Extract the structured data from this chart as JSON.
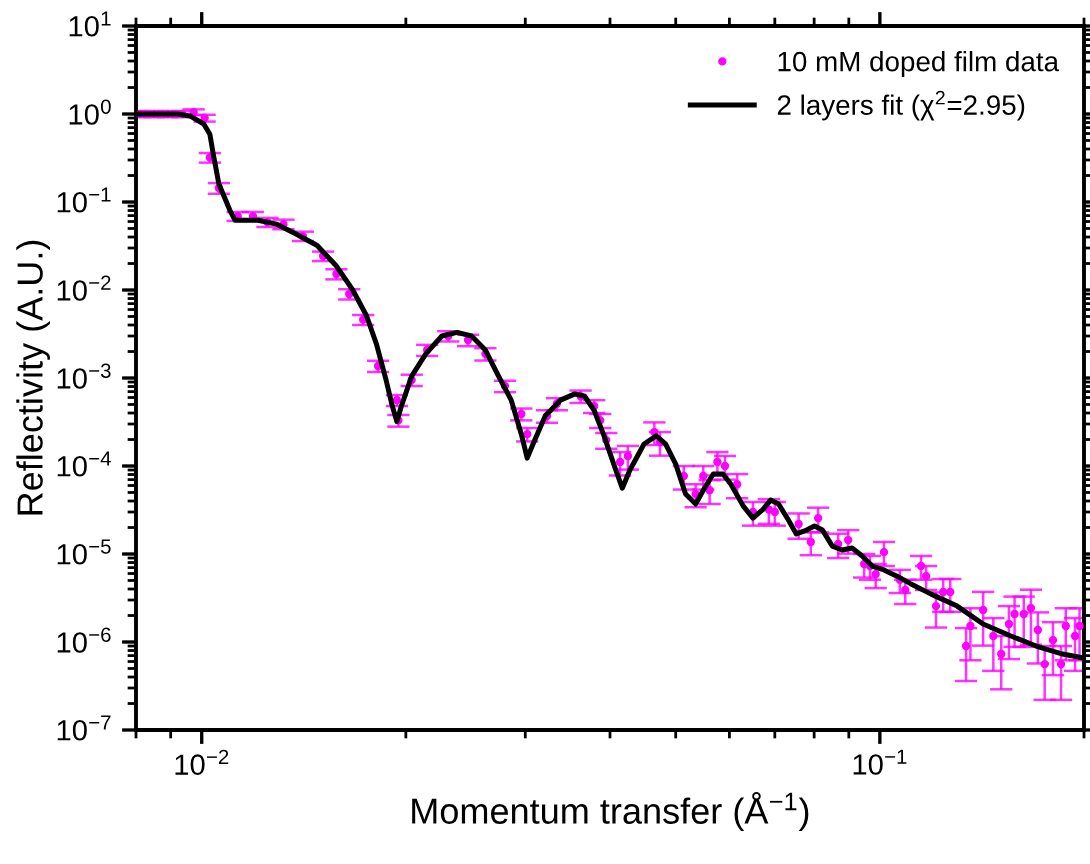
{
  "chart_data": {
    "type": "scatter",
    "log": "xy",
    "xlabel": "Momentum transfer (Å$^{−1}$)",
    "ylabel": "Reflectivity (A.U.)",
    "legend": "top right",
    "xlim": [
      0.008,
      0.2
    ],
    "ylim": [
      1e-07,
      10
    ],
    "xticks": [
      {
        "value": 0.01,
        "label": "10$^{−2}$"
      },
      {
        "value": 0.1,
        "label": "10$^{−1}$"
      }
    ],
    "yticks": [
      {
        "value": 1e-07,
        "label": "10$^{−7}$"
      },
      {
        "value": 1e-06,
        "label": "10$^{−6}$"
      },
      {
        "value": 1e-05,
        "label": "10$^{−5}$"
      },
      {
        "value": 0.0001,
        "label": "10$^{−4}$"
      },
      {
        "value": 0.001,
        "label": "10$^{−3}$"
      },
      {
        "value": 0.01,
        "label": "10$^{−2}$"
      },
      {
        "value": 0.1,
        "label": "10$^{−1}$"
      },
      {
        "value": 1,
        "label": "10$^{0}$"
      },
      {
        "value": 10,
        "label": "10$^{1}$"
      }
    ],
    "series": [
      {
        "name": "10 mM doped film data",
        "color": "#ff00ff",
        "marker": "circle",
        "x": [
          0.00812,
          0.00851,
          0.00891,
          0.00935,
          0.00973,
          0.0101,
          0.01028,
          0.0106,
          0.0113,
          0.0119,
          0.0125,
          0.0132,
          0.0141,
          0.0151,
          0.0158,
          0.0165,
          0.0173,
          0.0182,
          0.0194,
          0.0195,
          0.0204,
          0.0215,
          0.0231,
          0.0247,
          0.0262,
          0.028,
          0.0296,
          0.0302,
          0.0323,
          0.0334,
          0.0362,
          0.0379,
          0.0387,
          0.0395,
          0.0414,
          0.0425,
          0.0465,
          0.0474,
          0.0514,
          0.0535,
          0.0549,
          0.0561,
          0.0576,
          0.0591,
          0.0616,
          0.065,
          0.0686,
          0.07,
          0.0759,
          0.0791,
          0.0811,
          0.0868,
          0.0898,
          0.0948,
          0.0967,
          0.0986,
          0.1014,
          0.107,
          0.109,
          0.115,
          0.117,
          0.121,
          0.124,
          0.127,
          0.134,
          0.136,
          0.142,
          0.147,
          0.151,
          0.155,
          0.158,
          0.163,
          0.167,
          0.171,
          0.175,
          0.18,
          0.185,
          0.188,
          0.194,
          0.197
        ],
        "values": [
          1.0,
          1.0,
          1.0,
          1.0,
          1.05,
          0.9,
          0.32,
          0.144,
          0.069,
          0.069,
          0.059,
          0.056,
          0.041,
          0.0243,
          0.0152,
          0.009,
          0.0046,
          0.00137,
          0.00056,
          0.00033,
          0.00095,
          0.00208,
          0.003,
          0.0027,
          0.00188,
          0.00081,
          0.00039,
          0.00023,
          0.00037,
          0.00051,
          0.00062,
          0.00048,
          0.00033,
          0.000197,
          0.000111,
          0.00013,
          0.000243,
          0.000187,
          7.7e-05,
          4.8e-05,
          7.7e-05,
          5.3e-05,
          0.000111,
          0.0001,
          6.2e-05,
          3e-05,
          3.2e-05,
          3e-05,
          2.19e-05,
          1.37e-05,
          2.56e-05,
          1.3e-05,
          1.44e-05,
          7.7e-06,
          7.3e-06,
          5.9e-06,
          1.05e-05,
          5.1e-06,
          3.9e-06,
          7.3e-06,
          5.6e-06,
          2.56e-06,
          3.7e-06,
          3.7e-06,
          9e-07,
          1.52e-06,
          2.31e-06,
          1.17e-06,
          7.3e-07,
          1.6e-06,
          2.08e-06,
          2.08e-06,
          2.43e-06,
          1.37e-06,
          5.6e-07,
          1.05e-06,
          5.6e-07,
          1.52e-06,
          1.17e-06,
          1.52e-06
        ],
        "errors": [
          0.08,
          0.08,
          0.08,
          0.08,
          0.08,
          0.08,
          0.04,
          0.02,
          0.008,
          0.008,
          0.007,
          0.007,
          0.005,
          0.003,
          0.002,
          0.0012,
          0.0006,
          0.0002,
          8e-05,
          5e-05,
          0.00014,
          0.0003,
          0.0004,
          0.0004,
          0.0003,
          0.00012,
          6e-05,
          4e-05,
          6e-05,
          8e-05,
          0.0001,
          8e-05,
          6e-05,
          4e-05,
          3.3e-05,
          3.9e-05,
          7e-05,
          5.6e-05,
          2.3e-05,
          1.4e-05,
          2.3e-05,
          1.6e-05,
          3.3e-05,
          3e-05,
          1.9e-05,
          9e-06,
          1e-05,
          9e-06,
          7e-06,
          4e-06,
          8e-06,
          4e-06,
          4.3e-06,
          2.3e-06,
          2.2e-06,
          1.8e-06,
          3.2e-06,
          1.5e-06,
          1.2e-06,
          2.2e-06,
          1.7e-06,
          1.1e-06,
          1.5e-06,
          1.5e-06,
          5.4e-07,
          9e-07,
          1.4e-06,
          7e-07,
          4.4e-07,
          9.6e-07,
          1.2e-06,
          1.2e-06,
          1.5e-06,
          8e-07,
          3.4e-07,
          6.3e-07,
          3.4e-07,
          9e-07,
          7e-07,
          9e-07
        ]
      },
      {
        "name": "2 layers fit (χ$^{2}$=2.95)",
        "type": "line",
        "color": "#000000",
        "line_style": "solid",
        "marker": "none",
        "x": [
          0.008,
          0.00923,
          0.00961,
          0.01007,
          0.01028,
          0.0104,
          0.0106,
          0.011,
          0.0112,
          0.0121,
          0.0129,
          0.0138,
          0.0148,
          0.0158,
          0.0167,
          0.0175,
          0.0181,
          0.0187,
          0.0191,
          0.0194,
          0.0197,
          0.0204,
          0.0214,
          0.0226,
          0.0238,
          0.025,
          0.0262,
          0.0273,
          0.0286,
          0.0296,
          0.0302,
          0.0308,
          0.0321,
          0.0338,
          0.0355,
          0.0367,
          0.0379,
          0.0392,
          0.0406,
          0.0417,
          0.0428,
          0.0449,
          0.0468,
          0.0483,
          0.05,
          0.0517,
          0.0535,
          0.0549,
          0.0568,
          0.0587,
          0.0603,
          0.0629,
          0.065,
          0.0672,
          0.069,
          0.0709,
          0.0733,
          0.0753,
          0.078,
          0.0801,
          0.0823,
          0.0851,
          0.088,
          0.091,
          0.0942,
          0.0974,
          0.1014,
          0.106,
          0.111,
          0.119,
          0.13,
          0.142,
          0.156,
          0.17,
          0.186,
          0.199
        ],
        "values": [
          1.0,
          1.0,
          0.95,
          0.77,
          0.59,
          0.35,
          0.16,
          0.081,
          0.062,
          0.062,
          0.056,
          0.043,
          0.032,
          0.0187,
          0.01,
          0.0051,
          0.00243,
          0.00095,
          0.00048,
          0.00032,
          0.00048,
          0.00105,
          0.00188,
          0.003,
          0.0033,
          0.003,
          0.00208,
          0.00111,
          0.00056,
          0.00023,
          0.000123,
          0.000178,
          0.00037,
          0.00056,
          0.00066,
          0.00062,
          0.00043,
          0.00022,
          0.0001,
          5.6e-05,
          9e-05,
          0.000178,
          0.00022,
          0.000178,
          0.000105,
          4.8e-05,
          3.7e-05,
          5.3e-05,
          8.1e-05,
          8.1e-05,
          6.2e-05,
          3.5e-05,
          2.56e-05,
          3.2e-05,
          4.1e-05,
          3.7e-05,
          2.43e-05,
          1.69e-05,
          1.87e-05,
          2.08e-05,
          1.87e-05,
          1.23e-05,
          1.11e-05,
          1.17e-05,
          9.5e-06,
          7.3e-06,
          6.6e-06,
          5.6e-06,
          4.6e-06,
          3.5e-06,
          2.56e-06,
          1.6e-06,
          1.17e-06,
          9e-07,
          7.3e-07,
          6.6e-07
        ]
      }
    ]
  }
}
